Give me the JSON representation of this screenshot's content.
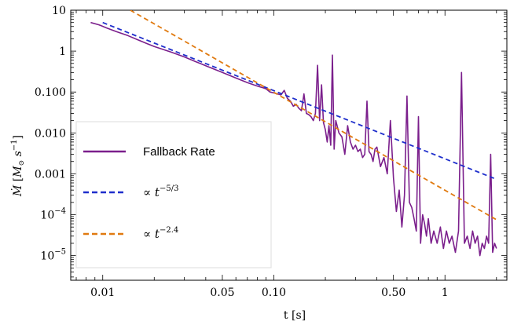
{
  "chart_data": {
    "type": "line",
    "xscale": "log",
    "yscale": "log",
    "xlim": [
      0.0065,
      2.3
    ],
    "ylim": [
      2.5e-06,
      10
    ],
    "xlabel": "t [s]",
    "ylabel": "Ṁ [M⊙ s−1]",
    "ylabel_parts": {
      "mdot": "Ṁ",
      "bracket_open": " [",
      "msun": "M",
      "sun": "⊙",
      "s": " s",
      "exp": "−1",
      "bracket_close": "]"
    },
    "xticks": [
      {
        "v": 0.01,
        "label": "0.01"
      },
      {
        "v": 0.05,
        "label": "0.05"
      },
      {
        "v": 0.1,
        "label": "0.10"
      },
      {
        "v": 0.5,
        "label": "0.50"
      },
      {
        "v": 1,
        "label": "1"
      }
    ],
    "yticks": [
      {
        "v": 10,
        "label": "10"
      },
      {
        "v": 1,
        "label": "1"
      },
      {
        "v": 0.1,
        "label": "0.100"
      },
      {
        "v": 0.01,
        "label": "0.010"
      },
      {
        "v": 0.001,
        "label": "0.001"
      },
      {
        "v": 0.0001,
        "label": "10",
        "exp": "−4"
      },
      {
        "v": 1e-05,
        "label": "10",
        "exp": "−5"
      }
    ],
    "legend_placement": "lower-left",
    "series": [
      {
        "name": "Fallback Rate",
        "color": "#7b1f8c",
        "style": "solid",
        "x": [
          0.0085,
          0.0095,
          0.0105,
          0.012,
          0.014,
          0.016,
          0.018,
          0.02,
          0.025,
          0.03,
          0.035,
          0.04,
          0.05,
          0.06,
          0.07,
          0.08,
          0.085,
          0.09,
          0.095,
          0.1,
          0.105,
          0.11,
          0.115,
          0.12,
          0.125,
          0.13,
          0.135,
          0.14,
          0.145,
          0.15,
          0.155,
          0.16,
          0.165,
          0.17,
          0.175,
          0.18,
          0.185,
          0.19,
          0.195,
          0.2,
          0.205,
          0.21,
          0.215,
          0.22,
          0.225,
          0.23,
          0.24,
          0.25,
          0.26,
          0.27,
          0.28,
          0.29,
          0.3,
          0.31,
          0.32,
          0.33,
          0.34,
          0.35,
          0.36,
          0.37,
          0.38,
          0.39,
          0.4,
          0.42,
          0.44,
          0.46,
          0.48,
          0.5,
          0.52,
          0.54,
          0.56,
          0.58,
          0.6,
          0.62,
          0.64,
          0.66,
          0.68,
          0.7,
          0.72,
          0.74,
          0.76,
          0.78,
          0.8,
          0.83,
          0.86,
          0.9,
          0.94,
          0.98,
          1.02,
          1.06,
          1.1,
          1.15,
          1.2,
          1.25,
          1.3,
          1.35,
          1.4,
          1.45,
          1.5,
          1.55,
          1.6,
          1.65,
          1.7,
          1.75,
          1.8,
          1.85,
          1.9,
          1.95,
          2.0
        ],
        "y": [
          5.0,
          4.4,
          3.7,
          3.0,
          2.4,
          1.9,
          1.55,
          1.3,
          0.95,
          0.72,
          0.55,
          0.44,
          0.3,
          0.22,
          0.17,
          0.14,
          0.13,
          0.12,
          0.1,
          0.095,
          0.09,
          0.085,
          0.11,
          0.07,
          0.06,
          0.045,
          0.05,
          0.04,
          0.035,
          0.09,
          0.03,
          0.028,
          0.025,
          0.02,
          0.03,
          0.45,
          0.02,
          0.15,
          0.018,
          0.012,
          0.006,
          0.015,
          0.005,
          0.8,
          0.004,
          0.02,
          0.01,
          0.008,
          0.003,
          0.015,
          0.006,
          0.004,
          0.005,
          0.0035,
          0.004,
          0.0025,
          0.003,
          0.06,
          0.0035,
          0.003,
          0.002,
          0.004,
          0.0045,
          0.0015,
          0.0025,
          0.001,
          0.02,
          0.0008,
          0.00012,
          0.0004,
          5e-05,
          0.0003,
          0.08,
          0.0002,
          0.00015,
          8e-05,
          4e-05,
          0.025,
          2e-05,
          0.0001,
          6e-05,
          3e-05,
          8e-05,
          2e-05,
          4e-05,
          2e-05,
          5e-05,
          1.5e-05,
          4e-05,
          2e-05,
          3e-05,
          1.2e-05,
          4e-05,
          0.3,
          2e-05,
          3e-05,
          1.5e-05,
          4e-05,
          2e-05,
          3e-05,
          1e-05,
          2e-05,
          1.5e-05,
          3e-05,
          2e-05,
          0.003,
          1.2e-05,
          2e-05,
          1.5e-05
        ]
      },
      {
        "name": "∝ t",
        "name_exp": "−5/3",
        "color": "#1f2fcc",
        "style": "dashed",
        "x": [
          0.01,
          2.0
        ],
        "y": [
          5.0,
          0.000734
        ]
      },
      {
        "name": "∝ t",
        "name_exp": "−2.4",
        "color": "#e07a10",
        "style": "dashed",
        "x": [
          0.0145,
          2.0
        ],
        "y": [
          10.0,
          7.55e-05
        ]
      }
    ]
  }
}
